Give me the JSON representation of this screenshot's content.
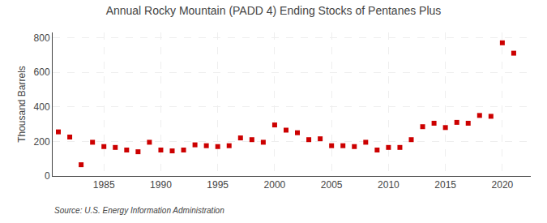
{
  "chart_data": {
    "type": "scatter",
    "title": "Annual Rocky Mountain (PADD 4) Ending Stocks of Pentanes Plus",
    "ylabel": "Thousand Barrels",
    "annotations": [
      "Source: U.S. Energy Information Administration"
    ],
    "x": [
      1981,
      1982,
      1983,
      1984,
      1985,
      1986,
      1987,
      1988,
      1989,
      1990,
      1991,
      1992,
      1993,
      1994,
      1995,
      1996,
      1997,
      1998,
      1999,
      2000,
      2001,
      2002,
      2003,
      2004,
      2005,
      2006,
      2007,
      2008,
      2009,
      2010,
      2011,
      2012,
      2013,
      2014,
      2015,
      2016,
      2017,
      2018,
      2019,
      2020,
      2021
    ],
    "values": [
      255,
      225,
      65,
      195,
      170,
      165,
      150,
      140,
      195,
      150,
      145,
      150,
      180,
      175,
      170,
      175,
      220,
      210,
      195,
      295,
      265,
      250,
      210,
      215,
      175,
      175,
      170,
      195,
      150,
      165,
      165,
      210,
      285,
      305,
      280,
      310,
      305,
      350,
      345,
      770,
      710
    ],
    "color": "#cc0000",
    "marker": "square",
    "xlim": [
      1980.5,
      2022.5
    ],
    "xticks": [
      1985,
      1990,
      1995,
      2000,
      2005,
      2010,
      2015,
      2020
    ],
    "ylim": [
      0,
      830
    ],
    "yticks": [
      0,
      200,
      400,
      600,
      800
    ],
    "grid": true
  }
}
